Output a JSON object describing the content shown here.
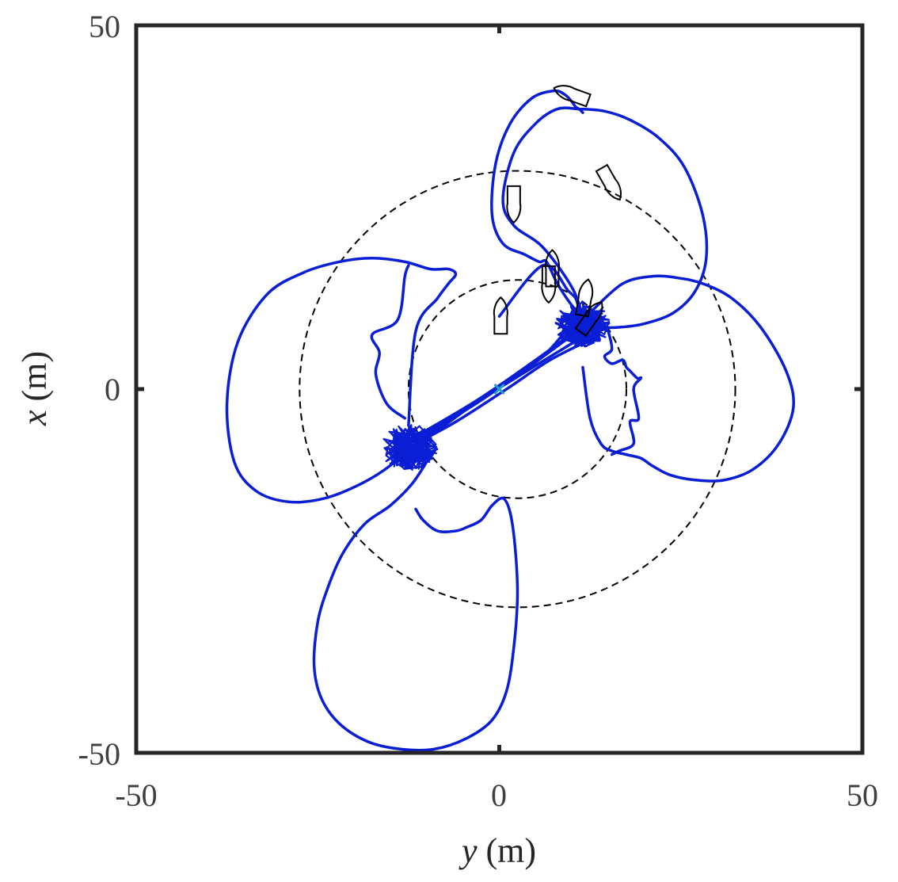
{
  "chart_data": {
    "type": "line",
    "title": "",
    "xlabel": {
      "var": "y",
      "unit": " (m)"
    },
    "ylabel": {
      "var": "x",
      "unit": " (m)"
    },
    "xlim": [
      -50,
      50
    ],
    "ylim": [
      -50,
      50
    ],
    "xticks": [
      -50,
      0,
      50
    ],
    "yticks": [
      -50,
      0,
      50
    ],
    "xtick_labels": [
      "-50",
      "0",
      "50"
    ],
    "ytick_labels": [
      "-50",
      "0",
      "50"
    ],
    "grid": false,
    "legend": "none",
    "colors": {
      "trajectory": "#0a1ed6",
      "circle": "#000000",
      "vessel": "#000000",
      "origin_marker": "#22a0c8",
      "frame": "#262626"
    },
    "circles": [
      {
        "center": [
          2.5,
          0
        ],
        "radius": 15,
        "style": "dashed"
      },
      {
        "center": [
          2.5,
          0
        ],
        "radius": 30,
        "style": "dashed"
      }
    ],
    "markers": [
      {
        "symbol": "x",
        "y": 0,
        "x": 0
      }
    ],
    "clusters": [
      {
        "y": -12.5,
        "x": -8,
        "size": 4
      },
      {
        "y": 11.5,
        "x": 9,
        "size": 4
      }
    ],
    "vessels": [
      {
        "y": 0.2,
        "x": 10,
        "heading": 0
      },
      {
        "y": 7.3,
        "x": 16.5,
        "heading": 0
      },
      {
        "y": 6.8,
        "x": 14.5,
        "heading": 180
      },
      {
        "y": 2.0,
        "x": 25.5,
        "heading": 180
      },
      {
        "y": 15.3,
        "x": 28.3,
        "heading": 150
      },
      {
        "y": 10.0,
        "x": 40.5,
        "heading": -70
      },
      {
        "y": 11.8,
        "x": 12.5,
        "heading": 10
      },
      {
        "y": 12.6,
        "x": 9.8,
        "heading": 35
      }
    ],
    "series": [
      {
        "style": "solid",
        "y": [
          0,
          6,
          9.5,
          10.5,
          11,
          11.5
        ],
        "x": [
          10,
          17,
          13.5,
          12.5,
          11,
          10
        ]
      },
      {
        "style": "solid",
        "y": [
          11.5,
          10,
          8,
          6.5,
          5.5,
          3.5,
          0.5,
          -1,
          -0.5,
          1.5,
          4.5,
          7.5,
          9,
          10,
          10.5,
          11,
          11.5
        ],
        "x": [
          10,
          11.5,
          14.5,
          17.5,
          17.5,
          18.5,
          20,
          24,
          31,
          36.5,
          40,
          41,
          40.5,
          39.5,
          38.8,
          38.5,
          38
        ],
        "note": "closing part of upper petal back to cluster"
      },
      {
        "style": "solid",
        "y": [
          11.5,
          10,
          6,
          2,
          0.5,
          2,
          5,
          8,
          11,
          14.5,
          18,
          22,
          25.5,
          28,
          28.5,
          27,
          24,
          20,
          16.5,
          14,
          12.5,
          12
        ],
        "x": [
          10,
          14,
          19.5,
          22.5,
          26,
          32.5,
          36.5,
          38.5,
          38.5,
          38.2,
          37,
          34.5,
          30.5,
          24,
          18,
          13.5,
          10.5,
          9,
          8.5,
          8.5,
          9,
          9.5
        ]
      },
      {
        "style": "solid",
        "y": [
          13,
          17,
          21,
          24.5,
          28,
          32,
          36,
          39.5,
          40.5,
          38.5,
          35,
          31,
          27,
          23.5,
          21,
          19.5,
          17.5,
          15.5,
          14,
          12.5,
          11.5
        ],
        "x": [
          11,
          14.5,
          15.5,
          15.3,
          14.5,
          12.5,
          8.5,
          2.5,
          -2.5,
          -7.5,
          -11,
          -12.5,
          -12.5,
          -11.8,
          -10.5,
          -9.5,
          -9,
          -8.5,
          -7.5,
          -4,
          3
        ],
        "note": "right petal"
      },
      {
        "style": "solid",
        "y": [
          15,
          15.5,
          14.5,
          15.5,
          17,
          17.5,
          18,
          19,
          19.5,
          18.5,
          19.2,
          18,
          18.5,
          16.5,
          15.5
        ],
        "x": [
          8,
          5.5,
          4.5,
          3.5,
          4,
          3,
          2.5,
          1.5,
          1.5,
          0,
          -4,
          -4.5,
          -7.5,
          -8.5,
          -9
        ],
        "note": "jagged right branch"
      },
      {
        "style": "solid",
        "y": [
          -12.5,
          -15,
          -19,
          -24,
          -29,
          -33.5,
          -36.5,
          -37.5,
          -36,
          -32,
          -27,
          -22,
          -17.5,
          -13,
          -9.5,
          -7,
          -6,
          -7,
          -8.5,
          -11.5,
          -12.5
        ],
        "x": [
          -8,
          -10.5,
          -13,
          -15,
          -15.5,
          -14,
          -10,
          -2,
          6.5,
          13,
          16,
          17.5,
          18,
          17.5,
          16.5,
          16.5,
          15.8,
          14.5,
          12.5,
          8,
          -5
        ],
        "note": "left petal"
      },
      {
        "style": "solid",
        "y": [
          -10,
          -12,
          -15,
          -18.5,
          -21.5,
          -23.5,
          -25,
          -25.5,
          -24.5,
          -22,
          -18,
          -13.5,
          -9,
          -4.5,
          -1,
          1,
          2,
          2.5,
          2.2,
          1.5,
          0.5,
          -1,
          -2.5,
          -4.5,
          -6,
          -8.5,
          -10.5,
          -11.5
        ],
        "x": [
          -10,
          -13,
          -16,
          -18.5,
          -22.5,
          -27,
          -32,
          -38,
          -42.5,
          -46,
          -48.5,
          -49.5,
          -49.5,
          -48,
          -45.5,
          -41.5,
          -35.5,
          -28.5,
          -22,
          -17,
          -15,
          -16,
          -18,
          -19,
          -19.5,
          -19.5,
          -18,
          -16.5
        ],
        "note": "bottom petal"
      },
      {
        "style": "solid",
        "y": [
          -13,
          -15.5,
          -17,
          -16.5,
          -17.5,
          -14,
          -13,
          -12.5
        ],
        "x": [
          -4,
          -2,
          2,
          5,
          7.5,
          9.5,
          15.5,
          17
        ],
        "note": "jagged left branch"
      },
      {
        "style": "solid",
        "y": [
          -12,
          -4,
          4,
          11.5
        ],
        "x": [
          -7,
          -2.5,
          3,
          8.5
        ],
        "note": "transits between clusters"
      },
      {
        "style": "solid",
        "y": [
          -13,
          -5,
          3,
          12
        ],
        "x": [
          -8.5,
          -3,
          2,
          7.5
        ]
      },
      {
        "style": "solid",
        "y": [
          -11.5,
          -3,
          5,
          12.5
        ],
        "x": [
          -6.5,
          -1.5,
          4,
          9.5
        ]
      },
      {
        "style": "solid",
        "y": [
          -12.5,
          -6,
          1,
          7,
          13
        ],
        "x": [
          -8,
          -4.5,
          0,
          4,
          7
        ]
      },
      {
        "style": "solid",
        "y": [
          -11,
          -2,
          6,
          11
        ],
        "x": [
          -7.5,
          -1,
          4.5,
          10.5
        ]
      }
    ]
  }
}
